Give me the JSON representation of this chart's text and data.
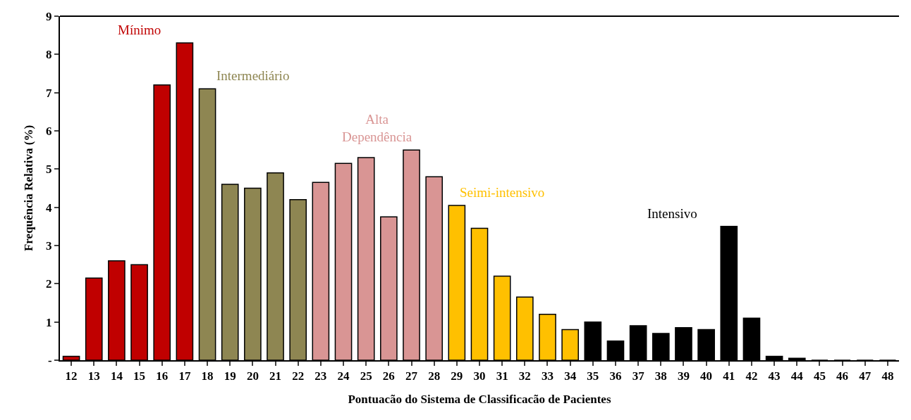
{
  "chart_data": {
    "type": "bar",
    "xlabel": "Pontuacão do Sistema de Classificacão de Pacientes",
    "ylabel": "Frequência Relativa (%)",
    "categories": [
      "12",
      "13",
      "14",
      "15",
      "16",
      "17",
      "18",
      "19",
      "20",
      "21",
      "22",
      "23",
      "24",
      "25",
      "26",
      "27",
      "28",
      "29",
      "30",
      "31",
      "32",
      "33",
      "34",
      "35",
      "36",
      "37",
      "38",
      "39",
      "40",
      "41",
      "42",
      "43",
      "44",
      "45",
      "46",
      "47",
      "48"
    ],
    "values": [
      0.1,
      2.15,
      2.6,
      2.5,
      7.2,
      8.3,
      7.1,
      4.6,
      4.5,
      4.9,
      4.2,
      4.65,
      5.15,
      5.3,
      3.75,
      5.5,
      4.8,
      4.05,
      3.45,
      2.2,
      1.65,
      1.2,
      0.8,
      1.0,
      0.5,
      0.9,
      0.7,
      0.85,
      0.8,
      3.5,
      1.1,
      0.1,
      0.05,
      0,
      0,
      0,
      0
    ],
    "colors": [
      "#c00000",
      "#c00000",
      "#c00000",
      "#c00000",
      "#c00000",
      "#c00000",
      "#8e8652",
      "#8e8652",
      "#8e8652",
      "#8e8652",
      "#8e8652",
      "#d99594",
      "#d99594",
      "#d99594",
      "#d99594",
      "#d99594",
      "#d99594",
      "#ffc000",
      "#ffc000",
      "#ffc000",
      "#ffc000",
      "#ffc000",
      "#ffc000",
      "#000000",
      "#000000",
      "#000000",
      "#000000",
      "#000000",
      "#000000",
      "#000000",
      "#000000",
      "#000000",
      "#000000",
      "#000000",
      "#000000",
      "#000000",
      "#000000"
    ],
    "ylim": [
      0,
      9
    ],
    "yticks": [
      {
        "value": 0,
        "label": "-"
      },
      1,
      2,
      3,
      4,
      5,
      6,
      7,
      8,
      9
    ],
    "grid": false,
    "annotations": [
      "Mínimo",
      "Intermediário",
      "Alta\nDependência",
      "Seimi-intensivo",
      "Intensivo"
    ]
  }
}
